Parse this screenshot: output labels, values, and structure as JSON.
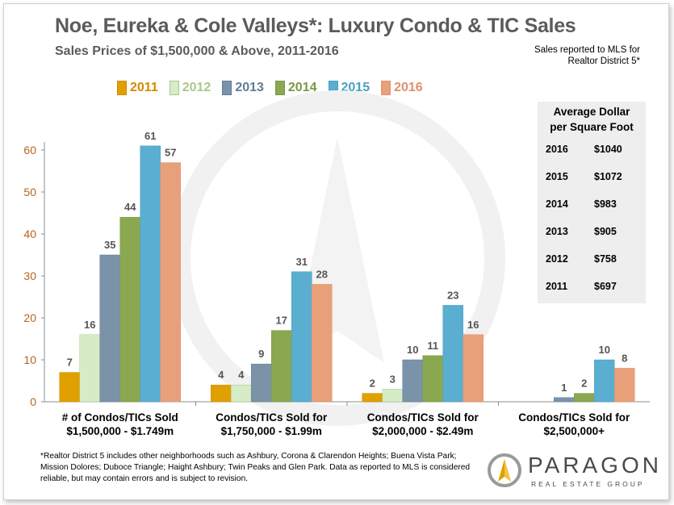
{
  "header": {
    "title": "Noe, Eureka & Cole Valleys*: Luxury Condo & TIC Sales",
    "subtitle": "Sales Prices of $1,500,000 & Above, 2011-2016",
    "note_line1": "Sales reported to MLS for",
    "note_line2": "Realtor District 5*"
  },
  "avg_box": {
    "heading_line1": "Average Dollar",
    "heading_line2": "per Square Foot",
    "rows": [
      {
        "year": "2016",
        "value": "$1040"
      },
      {
        "year": "2015",
        "value": "$1072"
      },
      {
        "year": "2014",
        "value": "$983"
      },
      {
        "year": "2013",
        "value": "$905"
      },
      {
        "year": "2012",
        "value": "$758"
      },
      {
        "year": "2011",
        "value": "$697"
      }
    ]
  },
  "chart_data": {
    "type": "bar",
    "categories": [
      [
        "# of Condos/TICs Sold",
        "$1,500,000 - $1.749m"
      ],
      [
        "Condos/TICs Sold for",
        "$1,750,000 - $1.99m"
      ],
      [
        "Condos/TICs Sold for",
        "$2,000,000 - $2.49m"
      ],
      [
        "Condos/TICs Sold for",
        "$2,500,000+"
      ]
    ],
    "series": [
      {
        "name": "2011",
        "color": "#e0a000",
        "values": [
          7,
          4,
          2,
          null
        ]
      },
      {
        "name": "2012",
        "color": "#d6ecc6",
        "values": [
          16,
          4,
          3,
          null
        ]
      },
      {
        "name": "2013",
        "color": "#7b93a8",
        "values": [
          35,
          9,
          10,
          1
        ]
      },
      {
        "name": "2014",
        "color": "#8aa84f",
        "values": [
          44,
          17,
          11,
          2
        ]
      },
      {
        "name": "2015",
        "color": "#5aaed0",
        "values": [
          61,
          31,
          23,
          10
        ]
      },
      {
        "name": "2016",
        "color": "#e8a07a",
        "values": [
          57,
          28,
          16,
          8
        ]
      }
    ],
    "legend_colors": [
      "#d48a00",
      "#a9c98a",
      "#5f7d98",
      "#7a9748",
      "#4aa0c3",
      "#e0906a"
    ],
    "ylim": [
      0,
      60
    ],
    "yticks": [
      0,
      10,
      20,
      30,
      40,
      50,
      60
    ],
    "legend_position": "top",
    "grid": false
  },
  "footnote": "*Realtor District 5 includes other neighborhoods such as Ashbury, Corona & Clarendon Heights; Buena Vista Park; Mission Dolores; Duboce Triangle; Haight Ashbury; Twin Peaks and Glen Park. Data as reported to MLS is considered reliable, but may contain errors and is subject to revision.",
  "brand": {
    "name": "PARAGON",
    "tagline": "REAL ESTATE GROUP"
  }
}
